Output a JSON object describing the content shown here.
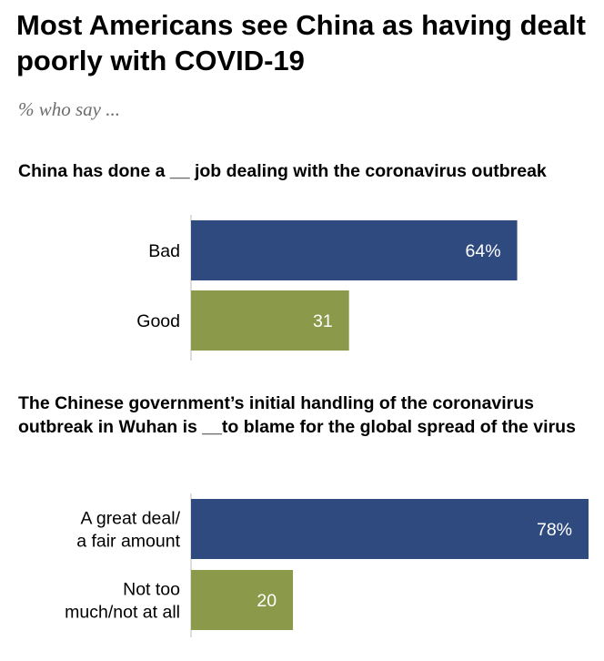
{
  "title": "Most Americans see China as having dealt poorly with COVID-19",
  "subtitle": "% who say ...",
  "colors": {
    "negative": "#2e4a7f",
    "positive": "#8a9a4a",
    "axis": "#bbbbbb"
  },
  "chart_data": [
    {
      "type": "bar",
      "orientation": "horizontal",
      "title": "China has done a __ job dealing with the coronavirus outbreak",
      "categories": [
        [
          "Bad"
        ],
        [
          "Good"
        ]
      ],
      "values": [
        64,
        31
      ],
      "value_labels": [
        "64%",
        "31"
      ],
      "xlim": [
        0,
        78
      ]
    },
    {
      "type": "bar",
      "orientation": "horizontal",
      "title": "The Chinese government’s initial handling of the coronavirus outbreak in Wuhan is __to blame for the global spread of the virus",
      "categories": [
        [
          "A great deal/",
          "a fair amount"
        ],
        [
          "Not too",
          "much/not at all"
        ]
      ],
      "values": [
        78,
        20
      ],
      "value_labels": [
        "78%",
        "20"
      ],
      "xlim": [
        0,
        78
      ]
    }
  ]
}
